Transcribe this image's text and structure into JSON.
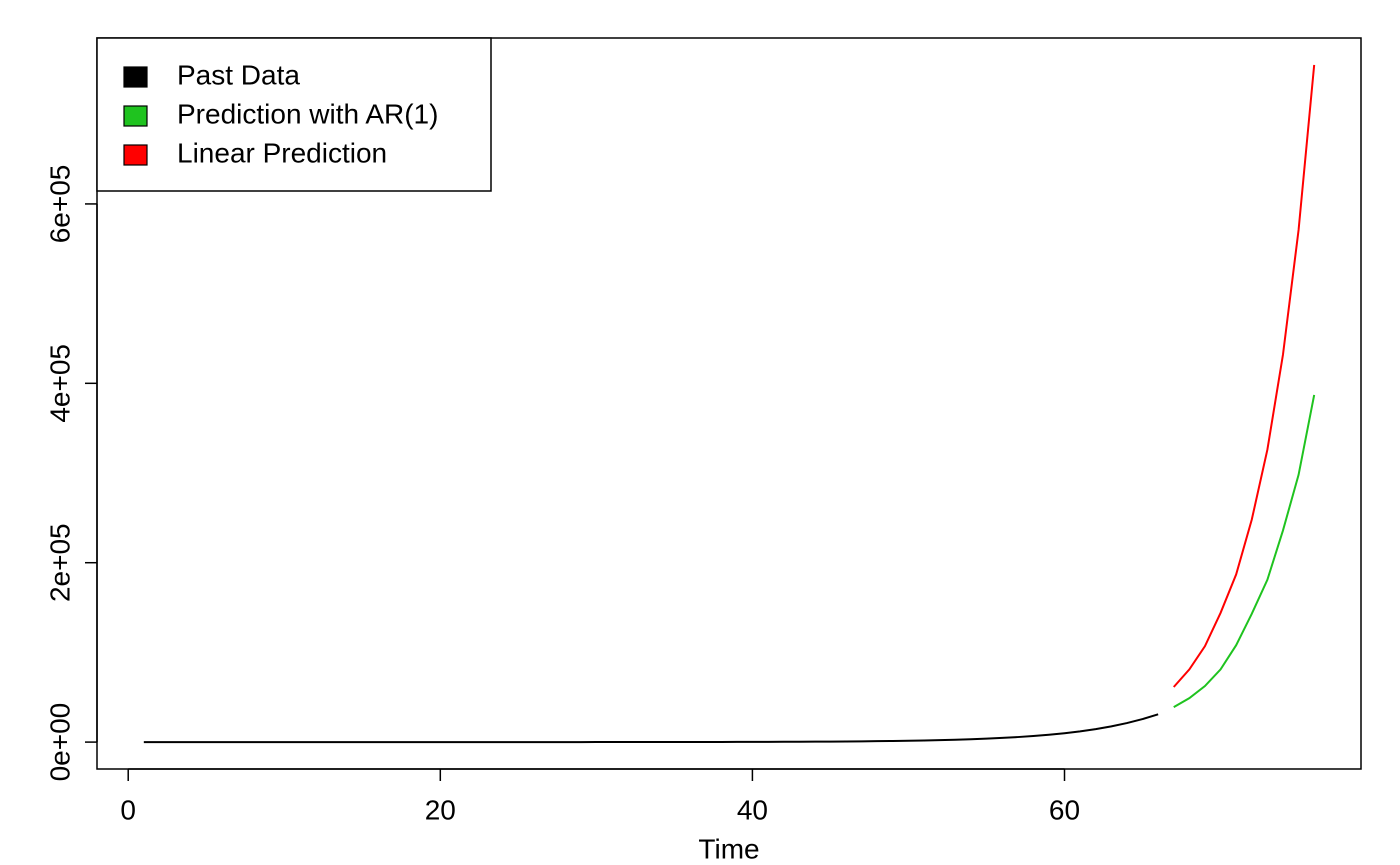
{
  "chart_data": {
    "type": "line",
    "x_label": "Time",
    "xlim": [
      -2,
      79
    ],
    "xticks": [
      0,
      20,
      40,
      60
    ],
    "ylim": [
      -30000,
      785000
    ],
    "yticks": [
      {
        "value": 0,
        "label": "0e+00"
      },
      {
        "value": 200000,
        "label": "2e+05"
      },
      {
        "value": 400000,
        "label": "4e+05"
      },
      {
        "value": 600000,
        "label": "6e+05"
      }
    ],
    "legend": "topleft",
    "series": [
      {
        "name": "Past Data",
        "color": "#000000",
        "x": [
          1,
          2,
          3,
          4,
          5,
          6,
          7,
          8,
          9,
          10,
          11,
          12,
          13,
          14,
          15,
          16,
          17,
          18,
          19,
          20,
          21,
          22,
          23,
          24,
          25,
          26,
          27,
          28,
          29,
          30,
          31,
          32,
          33,
          34,
          35,
          36,
          37,
          38,
          39,
          40,
          41,
          42,
          43,
          44,
          45,
          46,
          47,
          48,
          49,
          50,
          51,
          52,
          53,
          54,
          55,
          56,
          57,
          58,
          59,
          60,
          61,
          62,
          63,
          64,
          65,
          66
        ],
        "values": [
          0,
          0,
          0,
          0,
          0,
          0,
          0,
          0,
          0,
          0,
          1,
          1,
          1,
          1,
          2,
          2,
          3,
          3,
          4,
          5,
          6,
          7,
          9,
          11,
          13,
          16,
          19,
          23,
          28,
          33,
          40,
          49,
          59,
          71,
          86,
          104,
          126,
          152,
          184,
          222,
          268,
          325,
          392,
          475,
          574,
          694,
          839,
          1015,
          1227,
          1484,
          1794,
          2170,
          2624,
          3172,
          3836,
          4639,
          5609,
          6782,
          8201,
          9917,
          11992,
          14500,
          17534,
          21202,
          25637,
          31000
        ]
      },
      {
        "name": "Prediction with AR(1)",
        "color": "#1fc31f",
        "x": [
          67,
          68,
          69,
          70,
          71,
          72,
          73,
          74,
          75,
          76
        ],
        "values": [
          39000,
          49000,
          62500,
          81000,
          108000,
          143000,
          181000,
          236000,
          298000,
          387000
        ]
      },
      {
        "name": "Linear Prediction",
        "color": "#ff0000",
        "x": [
          67,
          68,
          69,
          70,
          71,
          72,
          73,
          74,
          75,
          76
        ],
        "values": [
          61400,
          81000,
          107000,
          144000,
          187000,
          248000,
          326000,
          432000,
          571000,
          755000
        ]
      }
    ]
  }
}
